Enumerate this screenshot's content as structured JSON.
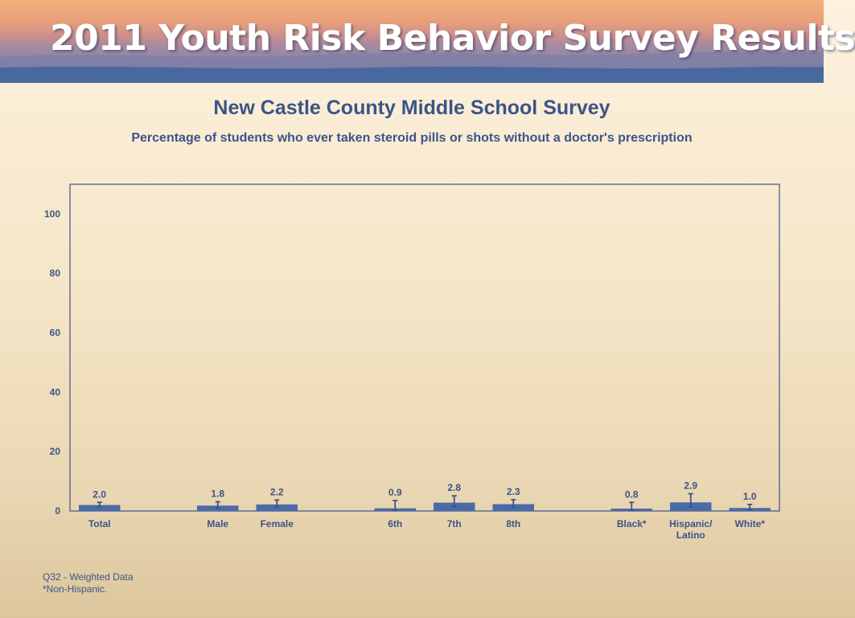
{
  "banner": {
    "title": "2011 Youth Risk Behavior Survey Results"
  },
  "colors": {
    "text": "#3c5487",
    "bar": "#4a6aa8",
    "frame": "#3c5487"
  },
  "chart_data": {
    "type": "bar",
    "title": "New Castle County Middle School Survey",
    "subtitle": "Percentage of students who ever taken steroid pills or shots without a doctor's prescription",
    "categories": [
      {
        "label": [
          "Total"
        ],
        "value": 2.0,
        "value_label": "2.0",
        "ci": [
          1.4,
          2.9
        ]
      },
      {
        "label": [
          "Male"
        ],
        "value": 1.8,
        "value_label": "1.8",
        "ci": [
          1.0,
          3.1
        ]
      },
      {
        "label": [
          "Female"
        ],
        "value": 2.2,
        "value_label": "2.2",
        "ci": [
          1.3,
          3.7
        ]
      },
      {
        "label": [
          "6th"
        ],
        "value": 0.9,
        "value_label": "0.9",
        "ci": [
          0.2,
          3.5
        ]
      },
      {
        "label": [
          "7th"
        ],
        "value": 2.8,
        "value_label": "2.8",
        "ci": [
          1.5,
          5.1
        ]
      },
      {
        "label": [
          "8th"
        ],
        "value": 2.3,
        "value_label": "2.3",
        "ci": [
          1.3,
          3.8
        ]
      },
      {
        "label": [
          "Black*"
        ],
        "value": 0.8,
        "value_label": "0.8",
        "ci": [
          0.2,
          2.9
        ]
      },
      {
        "label": [
          "Hispanic/",
          "Latino"
        ],
        "value": 2.9,
        "value_label": "2.9",
        "ci": [
          1.4,
          5.8
        ]
      },
      {
        "label": [
          "White*"
        ],
        "value": 1.0,
        "value_label": "1.0",
        "ci": [
          0.4,
          2.2
        ]
      }
    ],
    "groups": [
      [
        0
      ],
      [
        1,
        2
      ],
      [
        3,
        4,
        5
      ],
      [
        6,
        7,
        8
      ]
    ],
    "ylim": [
      0,
      110
    ],
    "yticks": [
      0,
      20,
      40,
      60,
      80,
      100
    ],
    "ytick_labels": [
      "0",
      "20",
      "40",
      "60",
      "80",
      "100"
    ],
    "xlabel": "",
    "ylabel": "",
    "grid": false,
    "legend": "none"
  },
  "footnotes": {
    "line1": "Q32 - Weighted Data",
    "line2": "*Non-Hispanic."
  }
}
